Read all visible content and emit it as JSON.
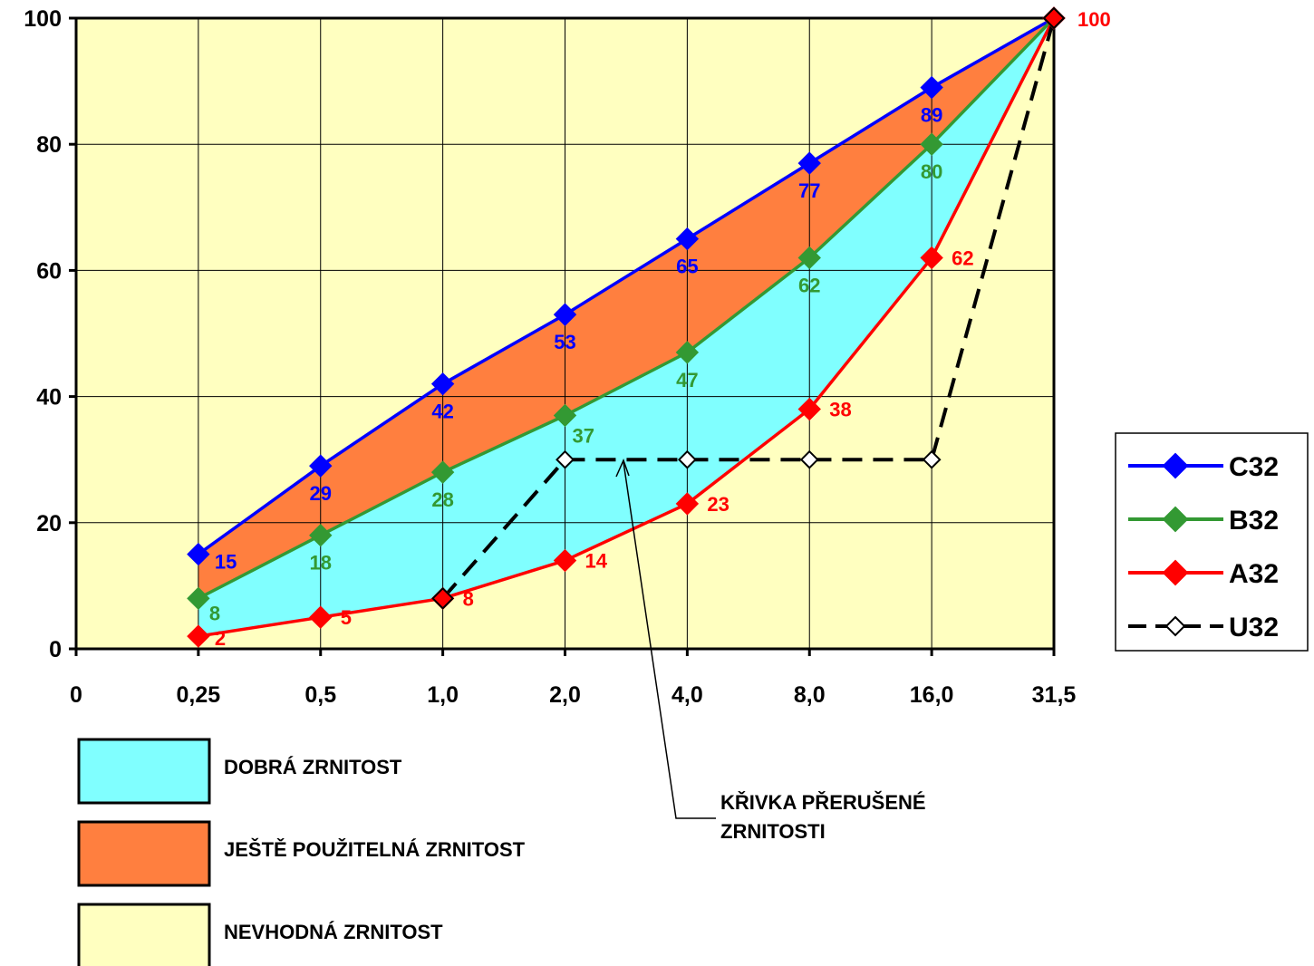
{
  "chart_data": {
    "type": "line",
    "categories": [
      "0",
      "0,25",
      "0,5",
      "1,0",
      "2,0",
      "4,0",
      "8,0",
      "16,0",
      "31,5"
    ],
    "ylim": [
      0,
      100
    ],
    "yticks": [
      "0",
      "20",
      "40",
      "60",
      "80",
      "100"
    ],
    "grid": true,
    "legend_position": "right",
    "series": [
      {
        "name": "C32",
        "color": "#0000ff",
        "marker": "filled-diamond",
        "line": "solid",
        "values": [
          null,
          15,
          29,
          42,
          53,
          65,
          77,
          89,
          100
        ],
        "labels": [
          null,
          "15",
          "29",
          "42",
          "53",
          "65",
          "77",
          "89",
          null
        ]
      },
      {
        "name": "B32",
        "color": "#339933",
        "marker": "filled-diamond",
        "line": "solid",
        "values": [
          null,
          8,
          18,
          28,
          37,
          47,
          62,
          80,
          100
        ],
        "labels": [
          null,
          "8",
          "18",
          "28",
          "37",
          "47",
          "62",
          "80",
          null
        ]
      },
      {
        "name": "A32",
        "color": "#ff0000",
        "marker": "filled-diamond",
        "line": "solid",
        "values": [
          null,
          2,
          5,
          8,
          14,
          23,
          38,
          62,
          100
        ],
        "labels": [
          null,
          "2",
          "5",
          "8",
          "14",
          "23",
          "38",
          "62",
          "100"
        ]
      },
      {
        "name": "U32",
        "color": "#000000",
        "marker": "hollow-diamond",
        "line": "dashed",
        "values": [
          null,
          null,
          null,
          8,
          30,
          30,
          30,
          30,
          100
        ],
        "labels": [
          null,
          null,
          null,
          null,
          null,
          null,
          null,
          null,
          null
        ]
      }
    ],
    "zones": [
      {
        "label": "DOBRÁ ZRNITOST",
        "color": "#80ffff",
        "between": [
          "A32",
          "B32"
        ]
      },
      {
        "label": "JEŠTĚ POUŽITELNÁ ZRNITOST",
        "color": "#ff7f3f",
        "between": [
          "B32",
          "C32"
        ]
      },
      {
        "label": "NEVHODNÁ ZRNITOST",
        "color": "#ffffc0",
        "between": [
          "outside",
          "outside"
        ]
      }
    ],
    "annotation": {
      "lines": [
        "KŘIVKA PŘERUŠENÉ",
        "ZRNITOSTI"
      ],
      "target_series": "U32"
    }
  }
}
